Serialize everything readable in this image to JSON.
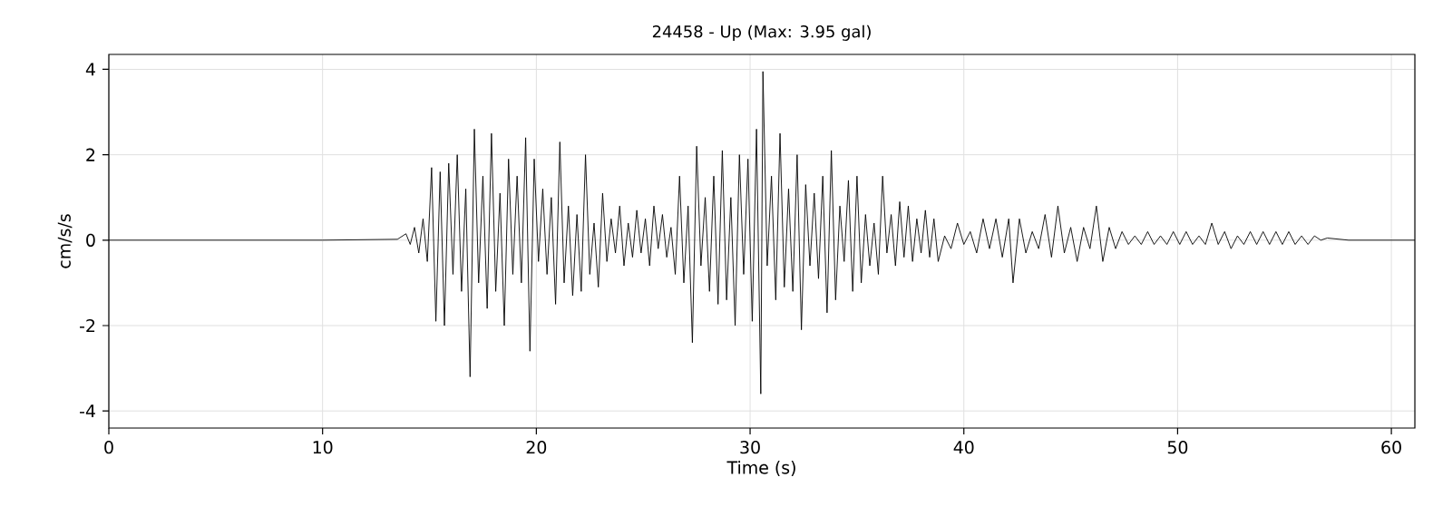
{
  "chart_data": {
    "type": "line",
    "title": "24458 - Up (Max: 3.95 gal)",
    "xlabel": "Time (s)",
    "ylabel": "cm/s/s",
    "xlim": [
      0,
      61.1
    ],
    "ylim": [
      -4.4,
      4.35
    ],
    "xticks": [
      0,
      10,
      20,
      30,
      40,
      50,
      60
    ],
    "yticks": [
      -4,
      -2,
      0,
      2,
      4
    ],
    "grid": true,
    "series": [
      {
        "color": "#000000",
        "x": [
          0,
          5,
          10,
          13.5,
          13.9,
          14.1,
          14.3,
          14.5,
          14.7,
          14.9,
          15.1,
          15.3,
          15.5,
          15.7,
          15.9,
          16.1,
          16.3,
          16.5,
          16.7,
          16.9,
          17.1,
          17.3,
          17.5,
          17.7,
          17.9,
          18.1,
          18.3,
          18.5,
          18.7,
          18.9,
          19.1,
          19.3,
          19.5,
          19.7,
          19.9,
          20.1,
          20.3,
          20.5,
          20.7,
          20.9,
          21.1,
          21.3,
          21.5,
          21.7,
          21.9,
          22.1,
          22.3,
          22.5,
          22.7,
          22.9,
          23.1,
          23.3,
          23.5,
          23.7,
          23.9,
          24.1,
          24.3,
          24.5,
          24.7,
          24.9,
          25.1,
          25.3,
          25.5,
          25.7,
          25.9,
          26.1,
          26.3,
          26.5,
          26.7,
          26.9,
          27.1,
          27.3,
          27.5,
          27.7,
          27.9,
          28.1,
          28.3,
          28.5,
          28.7,
          28.9,
          29.1,
          29.3,
          29.5,
          29.7,
          29.9,
          30.1,
          30.3,
          30.5,
          30.6,
          30.8,
          31.0,
          31.2,
          31.4,
          31.6,
          31.8,
          32.0,
          32.2,
          32.4,
          32.6,
          32.8,
          33.0,
          33.2,
          33.4,
          33.6,
          33.8,
          34.0,
          34.2,
          34.4,
          34.6,
          34.8,
          35.0,
          35.2,
          35.4,
          35.6,
          35.8,
          36.0,
          36.2,
          36.4,
          36.6,
          36.8,
          37.0,
          37.2,
          37.4,
          37.6,
          37.8,
          38.0,
          38.2,
          38.4,
          38.6,
          38.8,
          39.1,
          39.4,
          39.7,
          40.0,
          40.3,
          40.6,
          40.9,
          41.2,
          41.5,
          41.8,
          42.1,
          42.3,
          42.6,
          42.9,
          43.2,
          43.5,
          43.8,
          44.1,
          44.4,
          44.7,
          45.0,
          45.3,
          45.6,
          45.9,
          46.2,
          46.5,
          46.8,
          47.1,
          47.4,
          47.7,
          48.0,
          48.3,
          48.6,
          48.9,
          49.2,
          49.5,
          49.8,
          50.1,
          50.4,
          50.7,
          51.0,
          51.3,
          51.6,
          51.9,
          52.2,
          52.5,
          52.8,
          53.1,
          53.4,
          53.7,
          54.0,
          54.3,
          54.6,
          54.9,
          55.2,
          55.5,
          55.8,
          56.1,
          56.4,
          56.7,
          57.0,
          58,
          61.1
        ],
        "values": [
          0,
          0,
          0,
          0.02,
          0.15,
          -0.1,
          0.3,
          -0.3,
          0.5,
          -0.5,
          1.7,
          -1.9,
          1.6,
          -2.0,
          1.8,
          -0.8,
          2.0,
          -1.2,
          1.2,
          -3.2,
          2.6,
          -1.0,
          1.5,
          -1.6,
          2.5,
          -1.2,
          1.1,
          -2.0,
          1.9,
          -0.8,
          1.5,
          -1.0,
          2.4,
          -2.6,
          1.9,
          -0.5,
          1.2,
          -0.8,
          1.0,
          -1.5,
          2.3,
          -1.0,
          0.8,
          -1.3,
          0.6,
          -1.2,
          2.0,
          -0.8,
          0.4,
          -1.1,
          1.1,
          -0.5,
          0.5,
          -0.3,
          0.8,
          -0.6,
          0.4,
          -0.4,
          0.7,
          -0.3,
          0.5,
          -0.6,
          0.8,
          -0.2,
          0.6,
          -0.4,
          0.3,
          -0.8,
          1.5,
          -1.0,
          0.8,
          -2.4,
          2.2,
          -0.6,
          1.0,
          -1.2,
          1.5,
          -1.5,
          2.1,
          -1.4,
          1.0,
          -2.0,
          2.0,
          -0.8,
          1.9,
          -1.9,
          2.6,
          -3.6,
          3.95,
          -0.6,
          1.5,
          -1.4,
          2.5,
          -1.1,
          1.2,
          -1.2,
          2.0,
          -2.1,
          1.3,
          -0.6,
          1.1,
          -0.9,
          1.5,
          -1.7,
          2.1,
          -1.4,
          0.8,
          -0.5,
          1.4,
          -1.2,
          1.5,
          -1.0,
          0.6,
          -0.6,
          0.4,
          -0.8,
          1.5,
          -0.3,
          0.6,
          -0.6,
          0.9,
          -0.4,
          0.8,
          -0.5,
          0.5,
          -0.3,
          0.7,
          -0.4,
          0.5,
          -0.5,
          0.1,
          -0.2,
          0.4,
          -0.1,
          0.2,
          -0.3,
          0.5,
          -0.2,
          0.5,
          -0.4,
          0.5,
          -1.0,
          0.5,
          -0.3,
          0.2,
          -0.2,
          0.6,
          -0.4,
          0.8,
          -0.3,
          0.3,
          -0.5,
          0.3,
          -0.2,
          0.8,
          -0.5,
          0.3,
          -0.2,
          0.2,
          -0.1,
          0.1,
          -0.1,
          0.2,
          -0.1,
          0.1,
          -0.1,
          0.2,
          -0.1,
          0.2,
          -0.1,
          0.1,
          -0.1,
          0.4,
          -0.1,
          0.2,
          -0.2,
          0.1,
          -0.1,
          0.2,
          -0.1,
          0.2,
          -0.1,
          0.2,
          -0.1,
          0.2,
          -0.1,
          0.1,
          -0.1,
          0.1,
          0.0,
          0.05,
          0.0,
          0.0
        ]
      }
    ]
  }
}
